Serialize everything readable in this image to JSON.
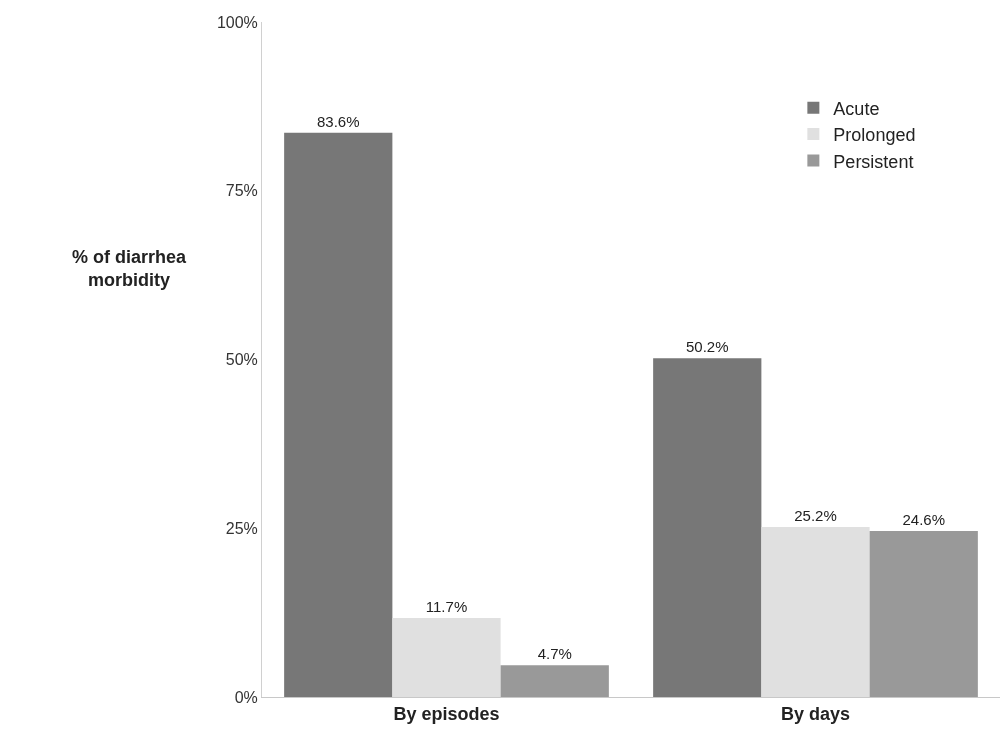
{
  "chart_data": {
    "type": "bar",
    "ylabel": "% of diarrhea morbidity",
    "categories": [
      "By episodes",
      "By days"
    ],
    "series": [
      {
        "name": "Acute",
        "color": "#777777",
        "values": [
          83.6,
          50.2
        ],
        "value_labels": [
          "83.6%",
          "50.2%"
        ]
      },
      {
        "name": "Prolonged",
        "color": "#e0e0e0",
        "values": [
          11.7,
          25.2
        ],
        "value_labels": [
          "11.7%",
          "25.2%"
        ]
      },
      {
        "name": "Persistent",
        "color": "#999999",
        "values": [
          4.7,
          24.6
        ],
        "value_labels": [
          "4.7%",
          "24.6%"
        ]
      }
    ],
    "ylim": [
      0,
      100
    ],
    "yticks": [
      {
        "value": 0,
        "label": "0%"
      },
      {
        "value": 25,
        "label": "25%"
      },
      {
        "value": 50,
        "label": "50%"
      },
      {
        "value": 75,
        "label": "75%"
      },
      {
        "value": 100,
        "label": "100%"
      }
    ],
    "legend": "top right"
  }
}
